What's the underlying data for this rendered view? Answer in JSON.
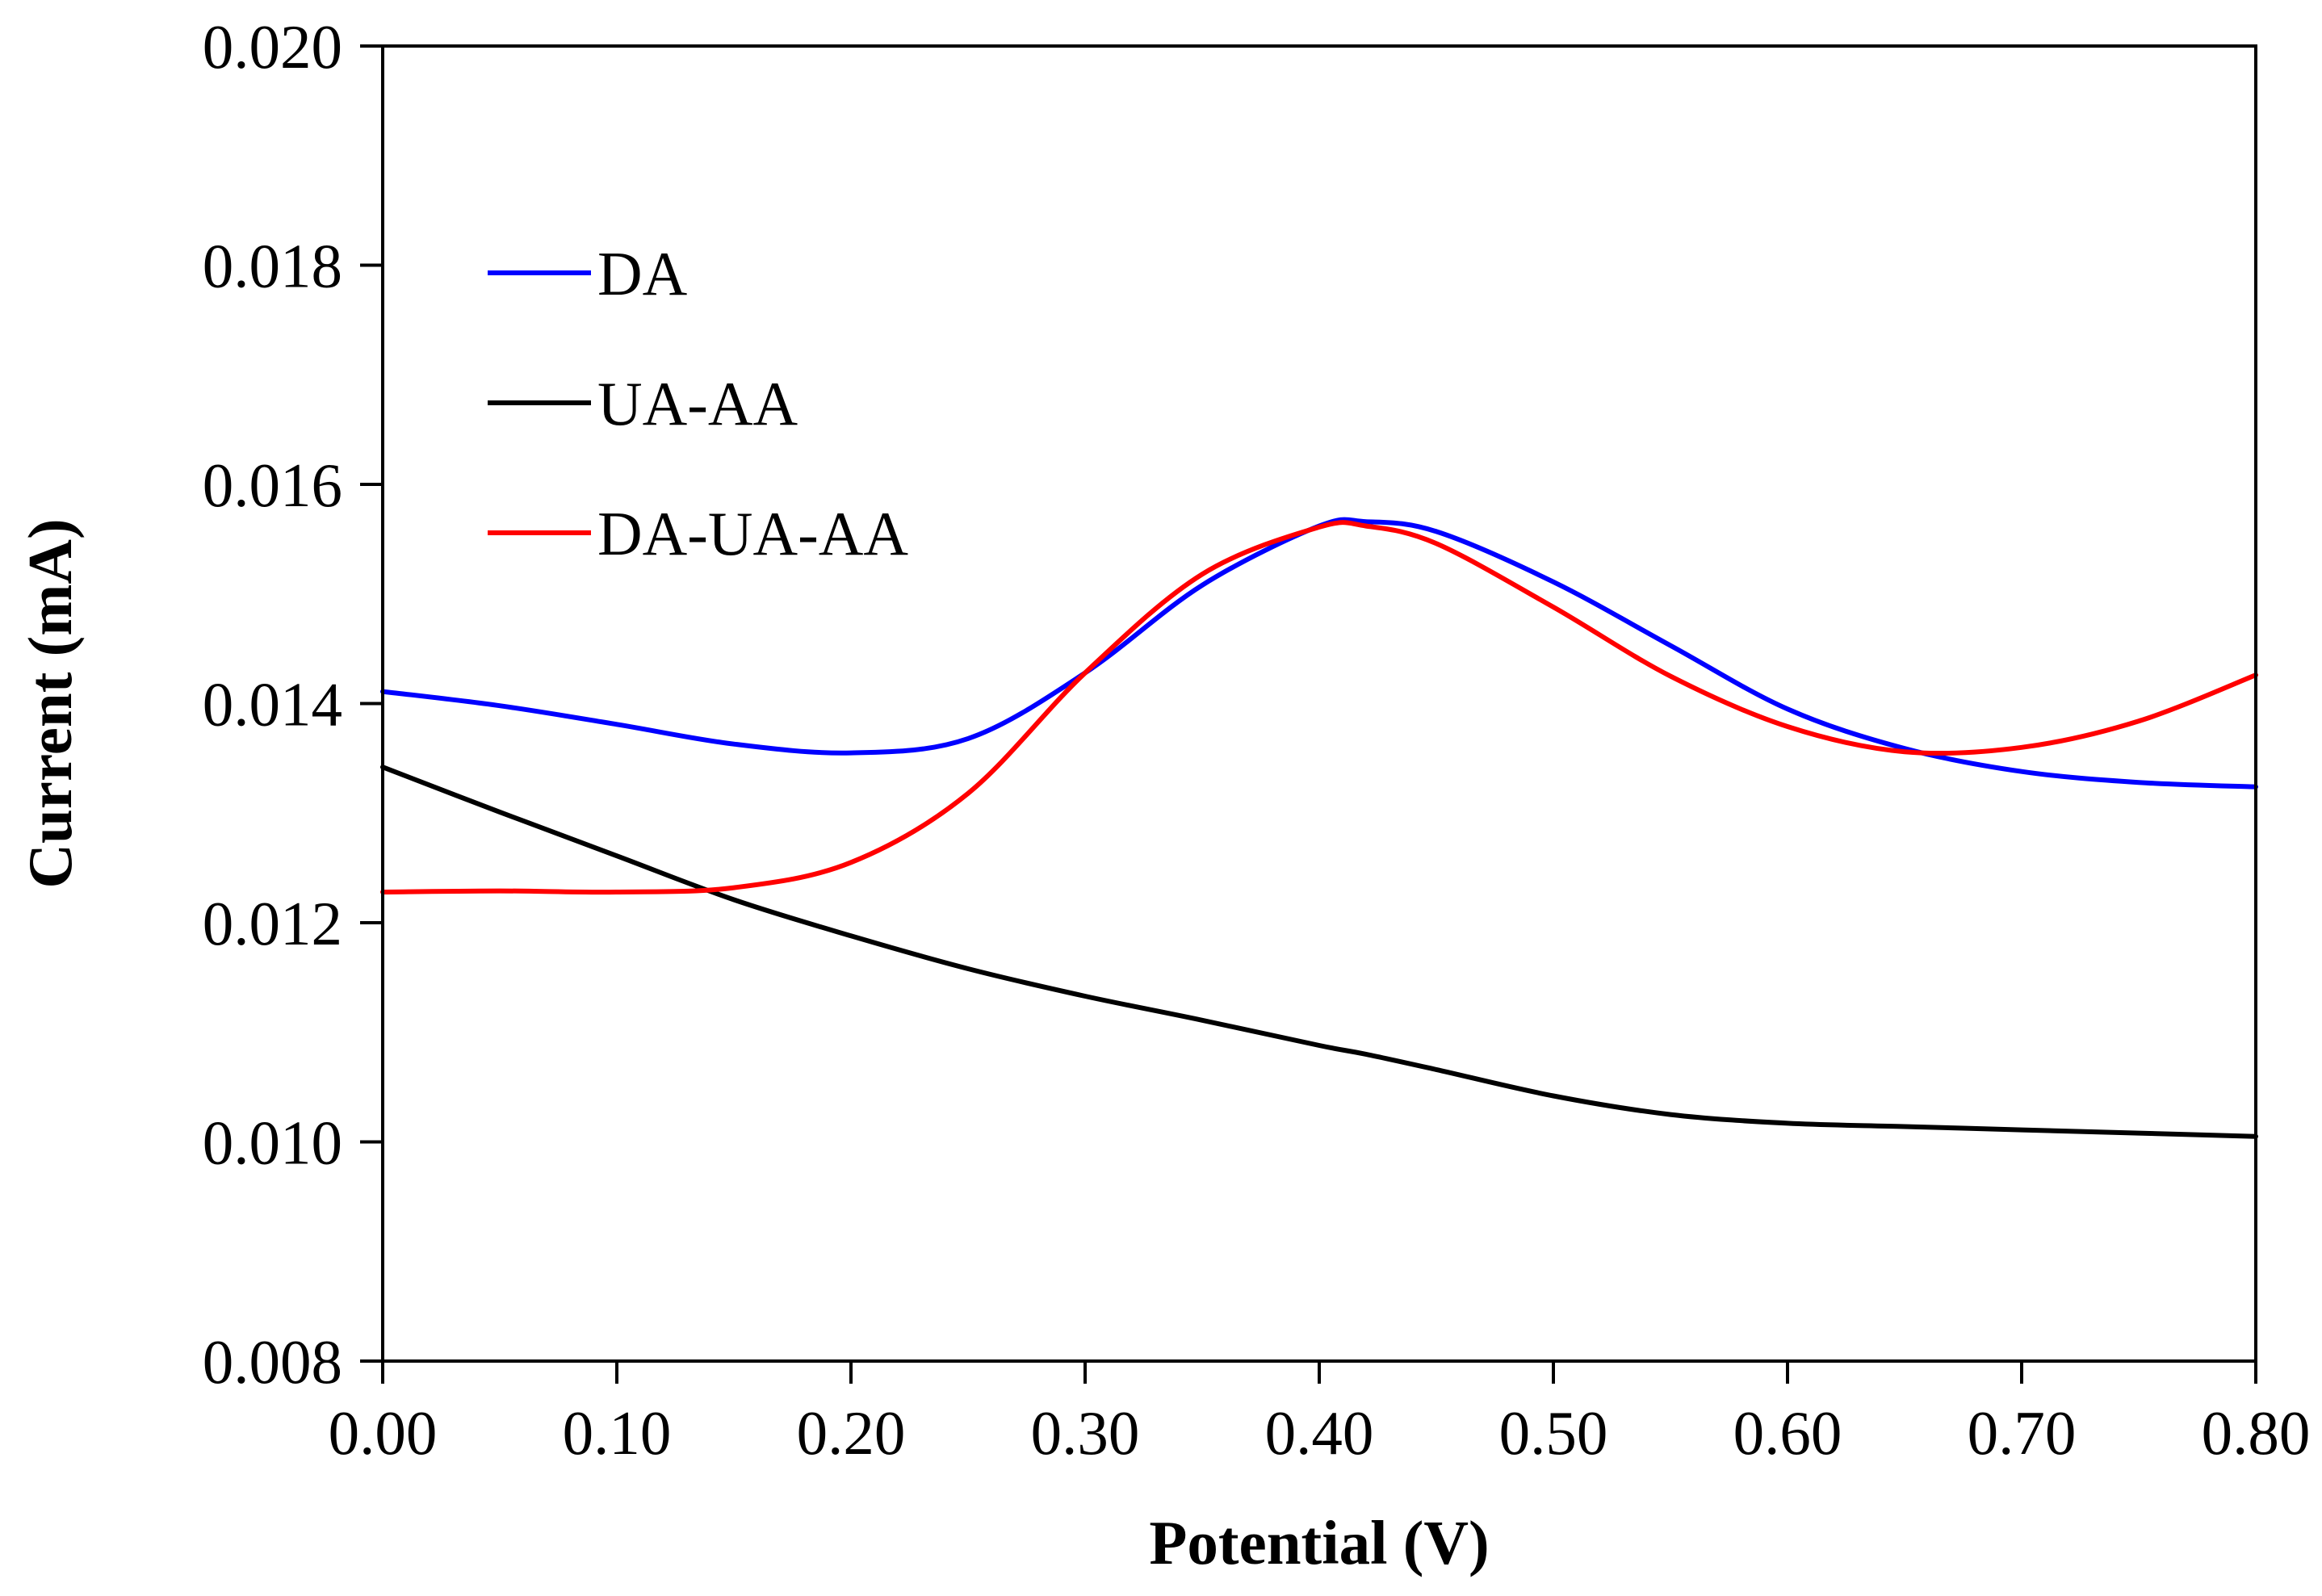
{
  "chart_data": {
    "type": "line",
    "title": "",
    "xlabel": "Potential (V)",
    "ylabel": "Current (mA)",
    "xlim": [
      0,
      0.8
    ],
    "ylim": [
      0.008,
      0.02
    ],
    "x_ticks": [
      "0.00",
      "0.10",
      "0.20",
      "0.30",
      "0.40",
      "0.50",
      "0.60",
      "0.70",
      "0.80"
    ],
    "y_ticks": [
      "0.008",
      "0.010",
      "0.012",
      "0.014",
      "0.016",
      "0.018",
      "0.020"
    ],
    "grid": false,
    "legend_position": "top-left",
    "x": [
      0.0,
      0.05,
      0.1,
      0.15,
      0.2,
      0.25,
      0.3,
      0.35,
      0.4,
      0.42,
      0.45,
      0.5,
      0.55,
      0.6,
      0.65,
      0.7,
      0.75,
      0.8
    ],
    "series": [
      {
        "name": "DA",
        "color": "#0000ff",
        "values": [
          0.01411,
          0.01398,
          0.01381,
          0.01363,
          0.01355,
          0.01368,
          0.01428,
          0.01508,
          0.01562,
          0.01566,
          0.01557,
          0.01511,
          0.01453,
          0.01395,
          0.01359,
          0.01338,
          0.01328,
          0.01324
        ]
      },
      {
        "name": "UA-AA",
        "color": "#000000",
        "values": [
          0.01342,
          0.01301,
          0.01261,
          0.01221,
          0.01188,
          0.01158,
          0.01133,
          0.01111,
          0.01088,
          0.0108,
          0.01066,
          0.01042,
          0.01025,
          0.01017,
          0.01014,
          0.01011,
          0.01008,
          0.01005
        ]
      },
      {
        "name": "DA-UA-AA",
        "color": "#ff0000",
        "values": [
          0.01228,
          0.01229,
          0.01228,
          0.01232,
          0.01255,
          0.01318,
          0.01428,
          0.01518,
          0.01561,
          0.01562,
          0.01546,
          0.01488,
          0.01425,
          0.01379,
          0.01356,
          0.0136,
          0.01384,
          0.01426
        ]
      }
    ]
  }
}
